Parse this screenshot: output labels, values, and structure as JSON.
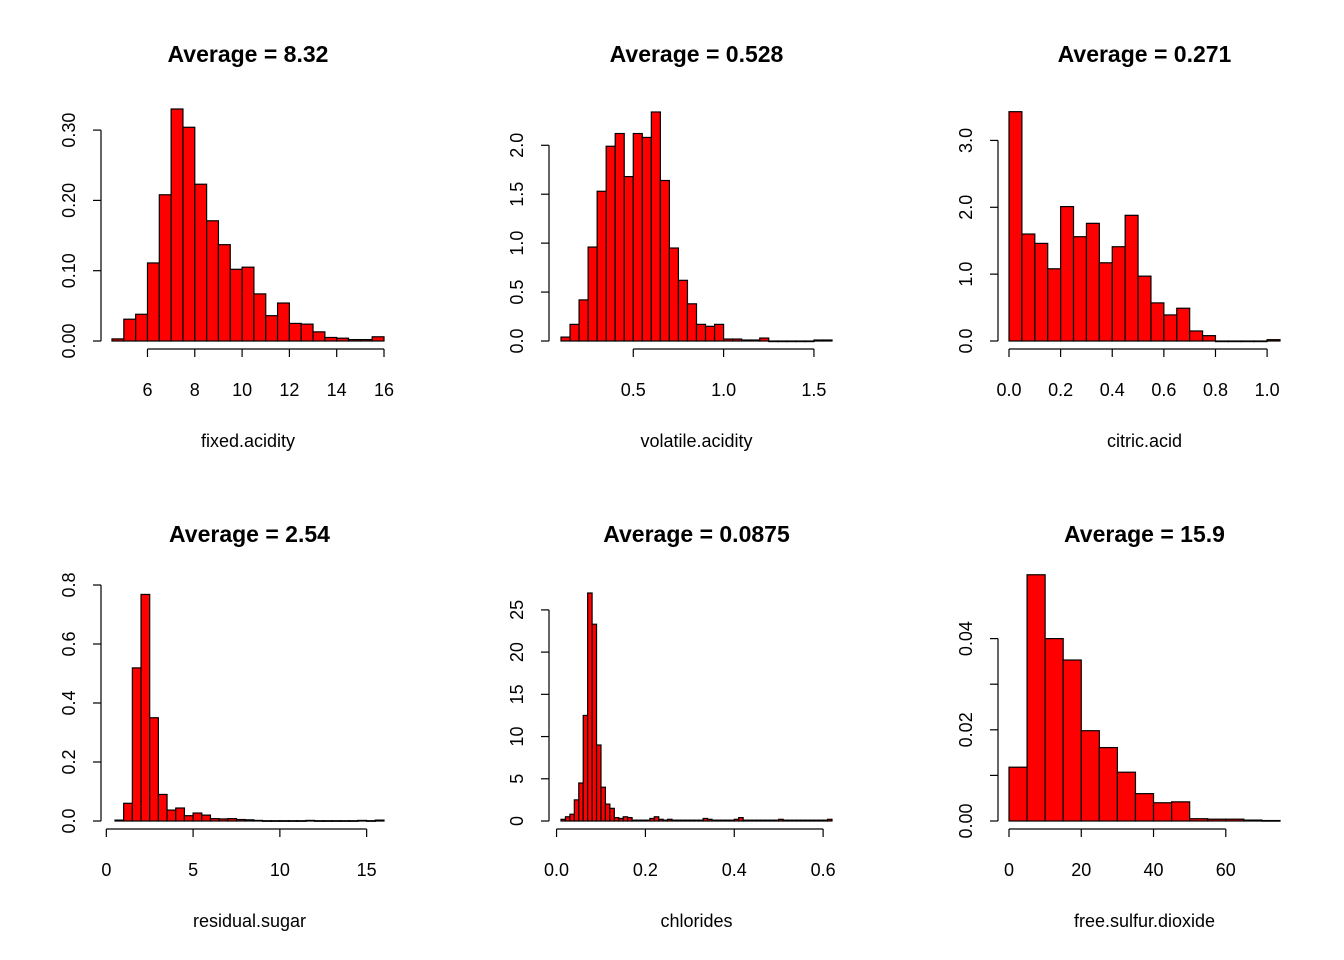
{
  "chart_data": [
    {
      "type": "bar",
      "title": "Average = 8.32",
      "xlabel": "fixed.acidity",
      "ylabel": "",
      "bin_start": 4.5,
      "bin_width": 0.5,
      "values": [
        0.003,
        0.031,
        0.038,
        0.111,
        0.208,
        0.33,
        0.304,
        0.223,
        0.171,
        0.137,
        0.102,
        0.105,
        0.067,
        0.036,
        0.054,
        0.025,
        0.024,
        0.013,
        0.005,
        0.004,
        0.002,
        0.002,
        0.006
      ],
      "xlim": [
        4.5,
        16
      ],
      "ylim": [
        0,
        0.33
      ],
      "x_ticks": [
        6,
        8,
        10,
        12,
        14,
        16
      ],
      "x_tick_labels": [
        "6",
        "8",
        "10",
        "12",
        "14",
        "16"
      ],
      "y_ticks": [
        0,
        0.1,
        0.2,
        0.3
      ],
      "y_tick_labels": [
        "0.00",
        "0.10",
        "0.20",
        "0.30"
      ]
    },
    {
      "type": "bar",
      "title": "Average = 0.528",
      "xlabel": "volatile.acidity",
      "ylabel": "",
      "bin_start": 0.1,
      "bin_width": 0.05,
      "values": [
        0.04,
        0.17,
        0.42,
        0.96,
        1.53,
        1.99,
        2.12,
        1.68,
        2.12,
        2.08,
        2.34,
        1.64,
        0.95,
        0.62,
        0.38,
        0.17,
        0.15,
        0.17,
        0.02,
        0.02,
        0.01,
        0.01,
        0.03,
        0,
        0,
        0,
        0,
        0,
        0.01,
        0.01
      ],
      "xlim": [
        0.1,
        1.6
      ],
      "ylim": [
        0,
        2.34
      ],
      "x_ticks": [
        0.5,
        1.0,
        1.5
      ],
      "x_tick_labels": [
        "0.5",
        "1.0",
        "1.5"
      ],
      "y_ticks": [
        0,
        0.5,
        1.0,
        1.5,
        2.0
      ],
      "y_tick_labels": [
        "0.0",
        "0.5",
        "1.0",
        "1.5",
        "2.0"
      ]
    },
    {
      "type": "bar",
      "title": "Average = 0.271",
      "xlabel": "citric.acid",
      "ylabel": "",
      "bin_start": 0,
      "bin_width": 0.05,
      "values": [
        3.43,
        1.6,
        1.46,
        1.08,
        2.01,
        1.56,
        1.76,
        1.17,
        1.41,
        1.88,
        0.97,
        0.57,
        0.39,
        0.49,
        0.15,
        0.08,
        0,
        0,
        0,
        0,
        0.02
      ],
      "xlim": [
        0,
        1.05
      ],
      "ylim": [
        0,
        3.5
      ],
      "x_ticks": [
        0.0,
        0.2,
        0.4,
        0.6,
        0.8,
        1.0
      ],
      "x_tick_labels": [
        "0.0",
        "0.2",
        "0.4",
        "0.6",
        "0.8",
        "1.0"
      ],
      "y_ticks": [
        0,
        1.0,
        2.0,
        3.0
      ],
      "y_tick_labels": [
        "0.0",
        "1.0",
        "2.0",
        "3.0"
      ]
    },
    {
      "type": "bar",
      "title": "Average = 2.54",
      "xlabel": "residual.sugar",
      "ylabel": "",
      "bin_start": 0.5,
      "bin_width": 0.5,
      "values": [
        0.003,
        0.06,
        0.519,
        0.768,
        0.35,
        0.09,
        0.037,
        0.044,
        0.018,
        0.027,
        0.02,
        0.008,
        0.007,
        0.008,
        0.005,
        0.004,
        0.002,
        0.001,
        0.001,
        0.001,
        0.001,
        0.001,
        0.002,
        0.001,
        0.001,
        0.001,
        0.001,
        0.001,
        0.002,
        0.001,
        0.003
      ],
      "xlim": [
        0.5,
        16
      ],
      "ylim": [
        0,
        0.8
      ],
      "x_ticks": [
        0,
        5,
        10,
        15
      ],
      "x_tick_labels": [
        "0",
        "5",
        "10",
        "15"
      ],
      "y_ticks": [
        0,
        0.2,
        0.4,
        0.6,
        0.8
      ],
      "y_tick_labels": [
        "0.0",
        "0.2",
        "0.4",
        "0.6",
        "0.8"
      ]
    },
    {
      "type": "bar",
      "title": "Average = 0.0875",
      "xlabel": "chlorides",
      "ylabel": "",
      "bin_start": 0.01,
      "bin_width": 0.01,
      "values": [
        0.2,
        0.5,
        0.8,
        2.5,
        4.5,
        12.5,
        27.0,
        23.3,
        9.0,
        4.0,
        2.0,
        1.5,
        0.4,
        0.3,
        0.5,
        0.4,
        0.1,
        0.1,
        0.1,
        0.1,
        0.3,
        0.5,
        0.2,
        0.1,
        0.2,
        0.1,
        0.1,
        0.1,
        0.1,
        0.1,
        0.1,
        0.1,
        0.3,
        0.2,
        0.1,
        0.1,
        0.1,
        0.1,
        0.1,
        0.2,
        0.4,
        0.1,
        0.1,
        0.1,
        0.1,
        0.1,
        0.1,
        0.1,
        0.1,
        0.2,
        0.1,
        0.1,
        0.1,
        0.1,
        0.1,
        0.1,
        0.1,
        0.1,
        0.1,
        0.1,
        0.2
      ],
      "xlim": [
        0.01,
        0.62
      ],
      "ylim": [
        0,
        27
      ],
      "x_ticks": [
        0.0,
        0.2,
        0.4,
        0.6
      ],
      "x_tick_labels": [
        "0.0",
        "0.2",
        "0.4",
        "0.6"
      ],
      "y_ticks": [
        0,
        5,
        10,
        15,
        20,
        25
      ],
      "y_tick_labels": [
        "0",
        "5",
        "10",
        "15",
        "20",
        "25"
      ]
    },
    {
      "type": "bar",
      "title": "Average = 15.9",
      "xlabel": "free.sulfur.dioxide",
      "ylabel": "",
      "bin_start": 0,
      "bin_width": 5,
      "values": [
        0.0118,
        0.054,
        0.04,
        0.0353,
        0.0198,
        0.0161,
        0.0107,
        0.006,
        0.004,
        0.0042,
        0.0005,
        0.0004,
        0.0004,
        0.0002,
        0.0001
      ],
      "xlim": [
        0,
        75
      ],
      "ylim": [
        0,
        0.05
      ],
      "x_ticks": [
        0,
        20,
        40,
        60
      ],
      "x_tick_labels": [
        "0",
        "20",
        "40",
        "60"
      ],
      "y_ticks": [
        0,
        0.01,
        0.02,
        0.03,
        0.04
      ],
      "y_tick_labels": [
        "0.00",
        "",
        "0.02",
        "",
        "0.04"
      ]
    }
  ]
}
